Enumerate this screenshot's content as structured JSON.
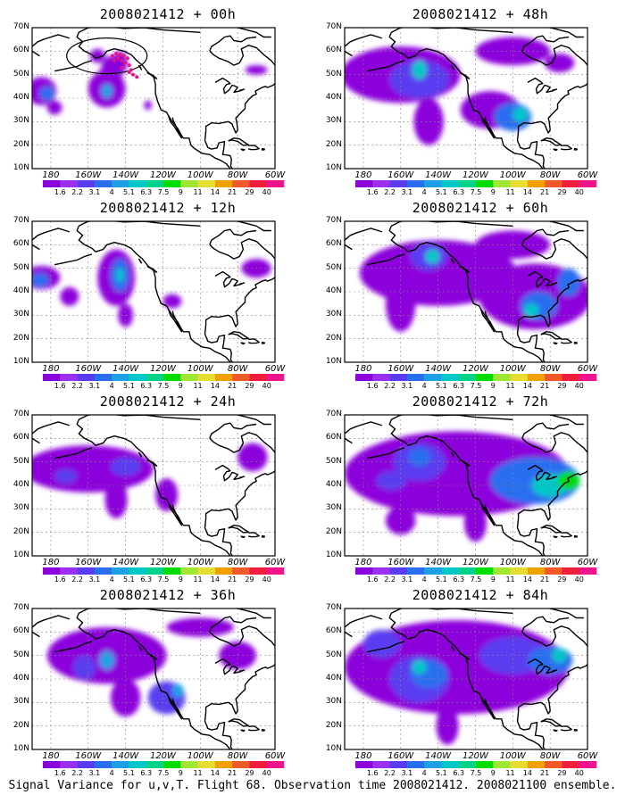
{
  "panels": [
    {
      "title": "2008021412 + 00h",
      "obs_marker": true
    },
    {
      "title": "2008021412 + 48h",
      "obs_marker": false
    },
    {
      "title": "2008021412 + 12h",
      "obs_marker": false
    },
    {
      "title": "2008021412 + 60h",
      "obs_marker": false
    },
    {
      "title": "2008021412 + 24h",
      "obs_marker": false
    },
    {
      "title": "2008021412 + 72h",
      "obs_marker": false
    },
    {
      "title": "2008021412 + 36h",
      "obs_marker": false
    },
    {
      "title": "2008021412 + 84h",
      "obs_marker": false
    }
  ],
  "lat_labels": [
    "70N",
    "60N",
    "50N",
    "40N",
    "30N",
    "20N",
    "10N"
  ],
  "lon_labels": [
    "180",
    "160W",
    "140W",
    "120W",
    "100W",
    "80W",
    "60W"
  ],
  "colorbar": {
    "labels": [
      "1.6",
      "2.2",
      "3.1",
      "4",
      "5.1",
      "6.3",
      "7.5",
      "9",
      "11",
      "14",
      "21",
      "29",
      "40"
    ],
    "colors": [
      "#8c00dc",
      "#9c30f0",
      "#5a3cf0",
      "#2a6ef0",
      "#1ea0e6",
      "#00c8c8",
      "#00d28c",
      "#00dc00",
      "#a0e632",
      "#e6dc32",
      "#f0a000",
      "#f05a28",
      "#f01e3c",
      "#f0148c"
    ]
  },
  "footer": "Signal Variance for u,v,T. Flight 68. Observation time 2008021412. 2008021100 ensemble."
}
